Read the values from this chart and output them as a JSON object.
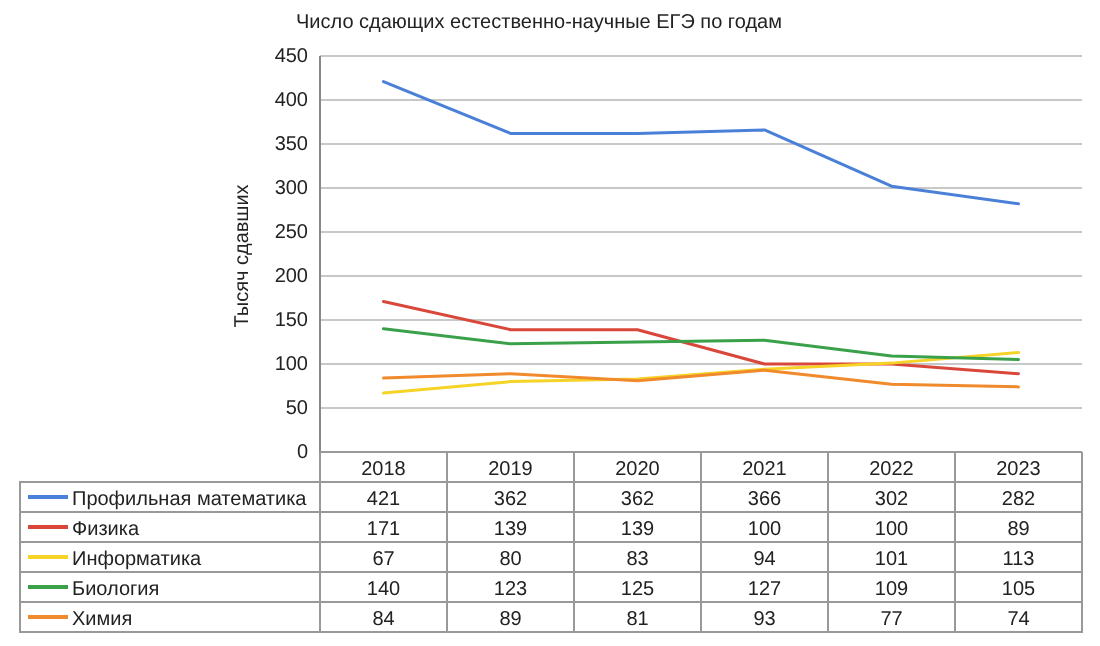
{
  "chart_data": {
    "type": "line",
    "title": "Число сдающих естественно-научные ЕГЭ по годам",
    "ylabel": "Тысяч сдавших",
    "categories": [
      "2018",
      "2019",
      "2020",
      "2021",
      "2022",
      "2023"
    ],
    "series": [
      {
        "name": "Профильная математика",
        "color": "#4a80d8",
        "values": [
          421,
          362,
          362,
          366,
          302,
          282
        ]
      },
      {
        "name": "Физика",
        "color": "#d9473a",
        "values": [
          171,
          139,
          139,
          100,
          100,
          89
        ]
      },
      {
        "name": "Информатика",
        "color": "#f5d327",
        "values": [
          67,
          80,
          83,
          94,
          101,
          113
        ]
      },
      {
        "name": "Биология",
        "color": "#3aa14a",
        "values": [
          140,
          123,
          125,
          127,
          109,
          105
        ]
      },
      {
        "name": "Химия",
        "color": "#f08a2c",
        "values": [
          84,
          89,
          81,
          93,
          77,
          74
        ]
      }
    ],
    "ylim": [
      0,
      450
    ],
    "yticks": [
      0,
      50,
      100,
      150,
      200,
      250,
      300,
      350,
      400,
      450
    ],
    "grid": "y",
    "legend": "bottom left",
    "data_labels": true,
    "marker": "none",
    "line_style": "solid"
  }
}
